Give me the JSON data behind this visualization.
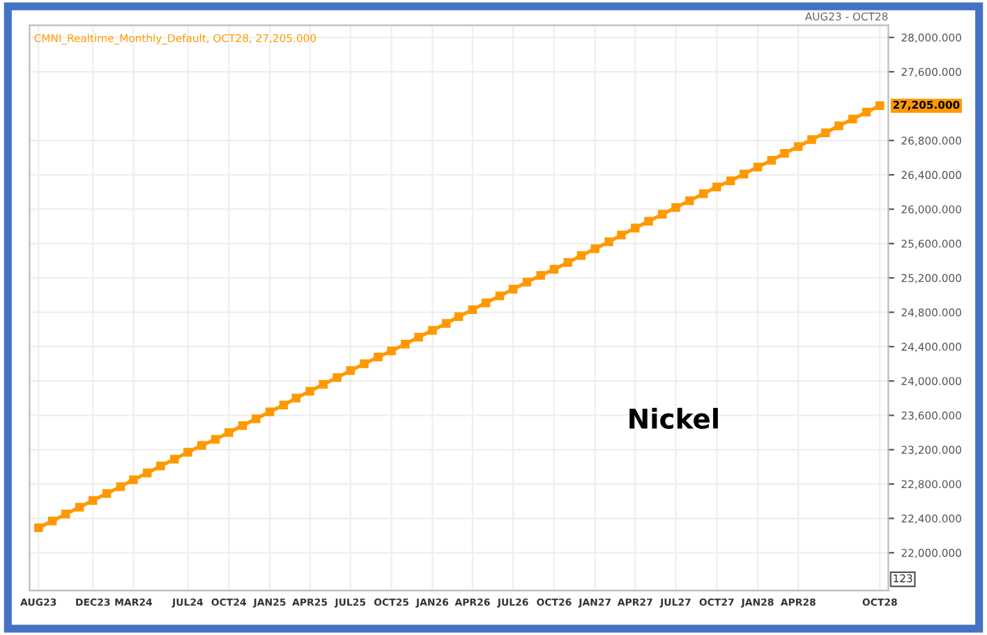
{
  "chart_data": {
    "type": "line",
    "x": [
      "2023-08",
      "2023-09",
      "2023-10",
      "2023-11",
      "2023-12",
      "2024-01",
      "2024-02",
      "2024-03",
      "2024-04",
      "2024-05",
      "2024-06",
      "2024-07",
      "2024-08",
      "2024-09",
      "2024-10",
      "2024-11",
      "2024-12",
      "2025-01",
      "2025-02",
      "2025-03",
      "2025-04",
      "2025-05",
      "2025-06",
      "2025-07",
      "2025-08",
      "2025-09",
      "2025-10",
      "2025-11",
      "2025-12",
      "2026-01",
      "2026-02",
      "2026-03",
      "2026-04",
      "2026-05",
      "2026-06",
      "2026-07",
      "2026-08",
      "2026-09",
      "2026-10",
      "2026-11",
      "2026-12",
      "2027-01",
      "2027-02",
      "2027-03",
      "2027-04",
      "2027-05",
      "2027-06",
      "2027-07",
      "2027-08",
      "2027-09",
      "2027-10",
      "2027-11",
      "2027-12",
      "2028-01",
      "2028-02",
      "2028-03",
      "2028-04",
      "2028-05",
      "2028-06",
      "2028-07",
      "2028-08",
      "2028-09",
      "2028-10"
    ],
    "series": [
      {
        "color": "#ff9900",
        "values": [
          22290,
          22370,
          22450,
          22530,
          22610,
          22690,
          22770,
          22850,
          22930,
          23010,
          23090,
          23170,
          23250,
          23320,
          23400,
          23480,
          23560,
          23640,
          23720,
          23800,
          23880,
          23960,
          24040,
          24120,
          24200,
          24280,
          24350,
          24430,
          24510,
          24590,
          24670,
          24750,
          24830,
          24910,
          24990,
          25070,
          25150,
          25230,
          25300,
          25380,
          25460,
          25540,
          25620,
          25700,
          25780,
          25860,
          25940,
          26020,
          26100,
          26180,
          26260,
          26330,
          26410,
          26490,
          26570,
          26650,
          26730,
          26810,
          26890,
          26970,
          27050,
          27130,
          27205
        ]
      }
    ],
    "marker": "square",
    "line_style": "solid",
    "grid": true,
    "xlim": [
      "2023-07-12",
      "2028-10-20"
    ],
    "xticks": [
      {
        "value": "2023-08",
        "label": "AUG23"
      },
      {
        "value": "2023-12",
        "label": "DEC23"
      },
      {
        "value": "2024-03",
        "label": "MAR24"
      },
      {
        "value": "2024-07",
        "label": "JUL24"
      },
      {
        "value": "2024-10",
        "label": "OCT24"
      },
      {
        "value": "2025-01",
        "label": "JAN25"
      },
      {
        "value": "2025-04",
        "label": "APR25"
      },
      {
        "value": "2025-07",
        "label": "JUL25"
      },
      {
        "value": "2025-10",
        "label": "OCT25"
      },
      {
        "value": "2026-01",
        "label": "JAN26"
      },
      {
        "value": "2026-04",
        "label": "APR26"
      },
      {
        "value": "2026-07",
        "label": "JUL26"
      },
      {
        "value": "2026-10",
        "label": "OCT26"
      },
      {
        "value": "2027-01",
        "label": "JAN27"
      },
      {
        "value": "2027-04",
        "label": "APR27"
      },
      {
        "value": "2027-07",
        "label": "JUL27"
      },
      {
        "value": "2027-10",
        "label": "OCT27"
      },
      {
        "value": "2028-01",
        "label": "JAN28"
      },
      {
        "value": "2028-04",
        "label": "APR28"
      },
      {
        "value": "2028-10",
        "label": "OCT28"
      }
    ],
    "ylim": [
      21560,
      28140
    ],
    "yticks": [
      {
        "value": 22000,
        "label": "22,000.000"
      },
      {
        "value": 22400,
        "label": "22,400.000"
      },
      {
        "value": 22800,
        "label": "22,800.000"
      },
      {
        "value": 23200,
        "label": "23,200.000"
      },
      {
        "value": 23600,
        "label": "23,600.000"
      },
      {
        "value": 24000,
        "label": "24,000.000"
      },
      {
        "value": 24400,
        "label": "24,400.000"
      },
      {
        "value": 24800,
        "label": "24,800.000"
      },
      {
        "value": 25200,
        "label": "25,200.000"
      },
      {
        "value": 25600,
        "label": "25,600.000"
      },
      {
        "value": 26000,
        "label": "26,000.000"
      },
      {
        "value": 26400,
        "label": "26,400.000"
      },
      {
        "value": 26800,
        "label": "26,800.000"
      },
      {
        "value": 27600,
        "label": "27,600.000"
      },
      {
        "value": 28000,
        "label": "28,000.000"
      }
    ],
    "annotations": [
      "CMNI_Realtime_Monthly_Default, OCT28, 27,205.000",
      "AUG23 - OCT28",
      "Nickel",
      "123",
      {
        "text": "27,205.000",
        "x": "2028-10",
        "y": 27205
      }
    ]
  }
}
